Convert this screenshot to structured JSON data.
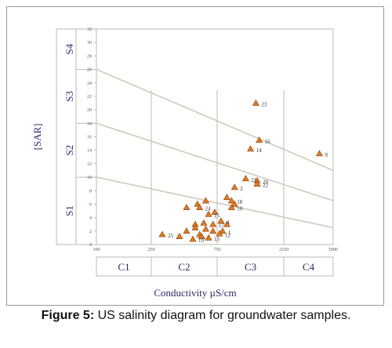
{
  "chart_data": {
    "type": "scatter",
    "title": "",
    "ylabel": "[SAR]",
    "xlabel": "Conductivity µS/cm",
    "x_ticks": [
      "100",
      "250",
      "750",
      "2250",
      "5000"
    ],
    "y_ticks": [
      "0",
      "2",
      "4",
      "6",
      "8",
      "10",
      "12",
      "14",
      "16",
      "18",
      "20",
      "22",
      "24",
      "26",
      "28",
      "30",
      "32"
    ],
    "ylim": [
      0,
      32
    ],
    "salinity_classes": [
      "C1",
      "C2",
      "C3",
      "C4"
    ],
    "sodium_classes": [
      "S1",
      "S2",
      "S3",
      "S4"
    ],
    "marker_color": "#e07b22",
    "marker_stroke": "#8a4212",
    "line_color": "#cfcabb",
    "grid_color": "#b8b8b8",
    "points": [
      {
        "label": "1",
        "x": 820,
        "y": 2.0
      },
      {
        "label": "2",
        "x": 1000,
        "y": 8.5
      },
      {
        "label": "4",
        "x": 800,
        "y": 3.5
      },
      {
        "label": "8",
        "x": 580,
        "y": 1.2
      },
      {
        "label": "9",
        "x": 4000,
        "y": 13.5
      },
      {
        "label": "10",
        "x": 950,
        "y": 5.5
      },
      {
        "label": "12",
        "x": 780,
        "y": 1.6
      },
      {
        "label": "13",
        "x": 650,
        "y": 1.0
      },
      {
        "label": "14",
        "x": 1300,
        "y": 14.2
      },
      {
        "label": "15",
        "x": 650,
        "y": 4.5
      },
      {
        "label": "16",
        "x": 1500,
        "y": 15.5
      },
      {
        "label": "17",
        "x": 700,
        "y": 3.0
      },
      {
        "label": "18",
        "x": 950,
        "y": 6.5
      },
      {
        "label": "19",
        "x": 500,
        "y": 0.8
      },
      {
        "label": "20",
        "x": 1450,
        "y": 9.5
      },
      {
        "label": "21",
        "x": 1200,
        "y": 9.8
      },
      {
        "label": "22",
        "x": 1450,
        "y": 9.0
      },
      {
        "label": "23",
        "x": 1420,
        "y": 21.0
      },
      {
        "label": "24",
        "x": 560,
        "y": 5.5
      },
      {
        "label": "25",
        "x": 300,
        "y": 1.5
      }
    ],
    "unlabeled_points": [
      {
        "x": 450,
        "y": 5.5
      },
      {
        "x": 540,
        "y": 6.0
      },
      {
        "x": 620,
        "y": 6.5
      },
      {
        "x": 880,
        "y": 7.0
      },
      {
        "x": 720,
        "y": 4.8
      },
      {
        "x": 600,
        "y": 3.2
      },
      {
        "x": 520,
        "y": 3.0
      },
      {
        "x": 450,
        "y": 2.0
      },
      {
        "x": 520,
        "y": 2.5
      },
      {
        "x": 560,
        "y": 1.5
      },
      {
        "x": 400,
        "y": 1.2
      },
      {
        "x": 620,
        "y": 2.3
      },
      {
        "x": 700,
        "y": 2.0
      },
      {
        "x": 880,
        "y": 3.0
      },
      {
        "x": 1000,
        "y": 6.0
      }
    ],
    "boundary_lines": [
      {
        "name": "S1-S2",
        "from": {
          "x": 100,
          "y": 10
        },
        "to": {
          "x": 5000,
          "y": 2.5
        }
      },
      {
        "name": "S2-S3",
        "from": {
          "x": 100,
          "y": 18
        },
        "to": {
          "x": 5000,
          "y": 6.5
        }
      },
      {
        "name": "S3-S4",
        "from": {
          "x": 100,
          "y": 26
        },
        "to": {
          "x": 5000,
          "y": 11
        }
      }
    ]
  },
  "caption": {
    "label": "Figure 5:",
    "text": " US salinity diagram for groundwater samples."
  }
}
